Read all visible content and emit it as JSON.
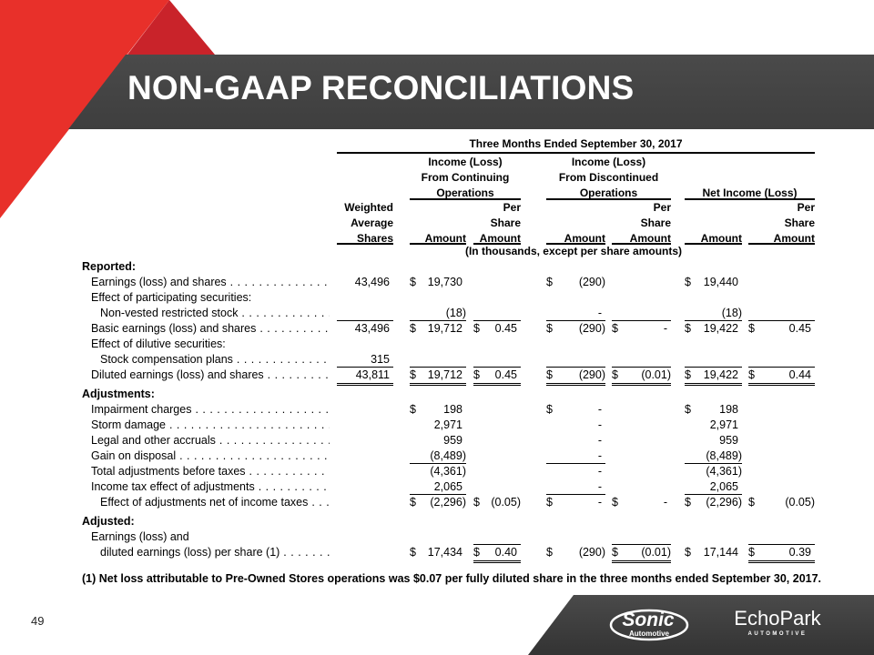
{
  "slide": {
    "title": "NON-GAAP RECONCILIATIONS",
    "page_number": "49",
    "colors": {
      "accent_red": "#e8302a",
      "dark_red": "#c9232a",
      "band_gray": "#444444"
    },
    "logos": {
      "sonic": "Sonic",
      "sonic_sub": "Automotive",
      "echopark": "EchoPark",
      "echopark_sub": "AUTOMOTIVE"
    }
  },
  "table": {
    "period": "Three Months Ended September 30, 2017",
    "groups": [
      {
        "lines": [
          "Income (Loss)",
          "From Continuing",
          "Operations"
        ]
      },
      {
        "lines": [
          "Income (Loss)",
          "From Discontinued",
          "Operations"
        ]
      },
      {
        "lines": [
          "",
          "",
          "Net Income (Loss)"
        ]
      }
    ],
    "columns": [
      [
        "Weighted",
        "Average",
        "Shares"
      ],
      [
        "",
        "",
        "Amount"
      ],
      [
        "Per",
        "Share",
        "Amount"
      ],
      [
        "",
        "",
        "Amount"
      ],
      [
        "Per",
        "Share",
        "Amount"
      ],
      [
        "",
        "",
        "Amount"
      ],
      [
        "Per",
        "Share",
        "Amount"
      ]
    ],
    "units_note": "(In thousands, except per share amounts)",
    "rows": [
      {
        "label": "Reported:",
        "bold": true
      },
      {
        "label": "Earnings (loss) and shares",
        "indent": 1,
        "dots": true,
        "cells": [
          {
            "v": "43,496"
          },
          {
            "v": "19,730",
            "d": true
          },
          null,
          {
            "v": "(290)",
            "d": true
          },
          null,
          {
            "v": "19,440",
            "d": true
          },
          null
        ]
      },
      {
        "label": "Effect of participating securities:",
        "indent": 1
      },
      {
        "label": "Non-vested restricted stock",
        "indent": 2,
        "dots": true,
        "cells": [
          null,
          {
            "v": "(18)"
          },
          null,
          {
            "v": "-"
          },
          null,
          {
            "v": "(18)"
          },
          null
        ]
      },
      {
        "label": "Basic earnings (loss) and shares",
        "indent": 1,
        "dots": true,
        "cells": [
          {
            "v": "43,496"
          },
          {
            "v": "19,712",
            "d": true
          },
          {
            "v": "0.45",
            "d": true
          },
          {
            "v": "(290)",
            "d": true
          },
          {
            "v": "-",
            "d": true
          },
          {
            "v": "19,422",
            "d": true
          },
          {
            "v": "0.45",
            "d": true
          }
        ]
      },
      {
        "label": "Effect of dilutive securities:",
        "indent": 1
      },
      {
        "label": "Stock compensation plans",
        "indent": 2,
        "dots": true,
        "cells": [
          {
            "v": "315"
          },
          null,
          null,
          null,
          null,
          null,
          null
        ]
      },
      {
        "label": "Diluted earnings (loss) and shares",
        "indent": 1,
        "dots": true,
        "cells": [
          {
            "v": "43,811"
          },
          {
            "v": "19,712",
            "d": true
          },
          {
            "v": "0.45",
            "d": true
          },
          {
            "v": "(290)",
            "d": true
          },
          {
            "v": "(0.01)",
            "d": true
          },
          {
            "v": "19,422",
            "d": true
          },
          {
            "v": "0.44",
            "d": true
          }
        ]
      },
      {
        "label": "Adjustments:",
        "bold": true
      },
      {
        "label": "Impairment charges",
        "indent": 1,
        "dots": true,
        "cells": [
          null,
          {
            "v": "198",
            "d": true
          },
          null,
          {
            "v": "-",
            "d": true
          },
          null,
          {
            "v": "198",
            "d": true
          },
          null
        ]
      },
      {
        "label": "Storm damage",
        "indent": 1,
        "dots": true,
        "cells": [
          null,
          {
            "v": "2,971"
          },
          null,
          {
            "v": "-"
          },
          null,
          {
            "v": "2,971"
          },
          null
        ]
      },
      {
        "label": "Legal and other accruals",
        "indent": 1,
        "dots": true,
        "cells": [
          null,
          {
            "v": "959"
          },
          null,
          {
            "v": "-"
          },
          null,
          {
            "v": "959"
          },
          null
        ]
      },
      {
        "label": "Gain on disposal",
        "indent": 1,
        "dots": true,
        "cells": [
          null,
          {
            "v": "(8,489)"
          },
          null,
          {
            "v": "-"
          },
          null,
          {
            "v": "(8,489)"
          },
          null
        ]
      },
      {
        "label": "Total adjustments before taxes",
        "indent": 1,
        "dots": true,
        "cells": [
          null,
          {
            "v": "(4,361)"
          },
          null,
          {
            "v": "-"
          },
          null,
          {
            "v": "(4,361)"
          },
          null
        ]
      },
      {
        "label": "Income tax effect of adjustments",
        "indent": 1,
        "dots": true,
        "cells": [
          null,
          {
            "v": "2,065"
          },
          null,
          {
            "v": "-"
          },
          null,
          {
            "v": "2,065"
          },
          null
        ]
      },
      {
        "label": "Effect of adjustments net of income taxes",
        "indent": 2,
        "dots": true,
        "cells": [
          null,
          {
            "v": "(2,296)",
            "d": true
          },
          {
            "v": "(0.05)",
            "d": true
          },
          {
            "v": "-",
            "d": true
          },
          {
            "v": "-",
            "d": true
          },
          {
            "v": "(2,296)",
            "d": true
          },
          {
            "v": "(0.05)",
            "d": true
          }
        ]
      },
      {
        "label": "Adjusted:",
        "bold": true
      },
      {
        "label": "Earnings (loss) and",
        "indent": 1
      },
      {
        "label": "diluted earnings (loss) per share (1)",
        "indent": 2,
        "dots": true,
        "cells": [
          null,
          {
            "v": "17,434",
            "d": true
          },
          {
            "v": "0.40",
            "d": true
          },
          {
            "v": "(290)",
            "d": true
          },
          {
            "v": "(0.01)",
            "d": true
          },
          {
            "v": "17,144",
            "d": true
          },
          {
            "v": "0.39",
            "d": true
          }
        ]
      }
    ],
    "footnote": "(1) Net loss attributable to Pre-Owned Stores operations was $0.07 per fully diluted share in the three months ended September 30, 2017."
  }
}
